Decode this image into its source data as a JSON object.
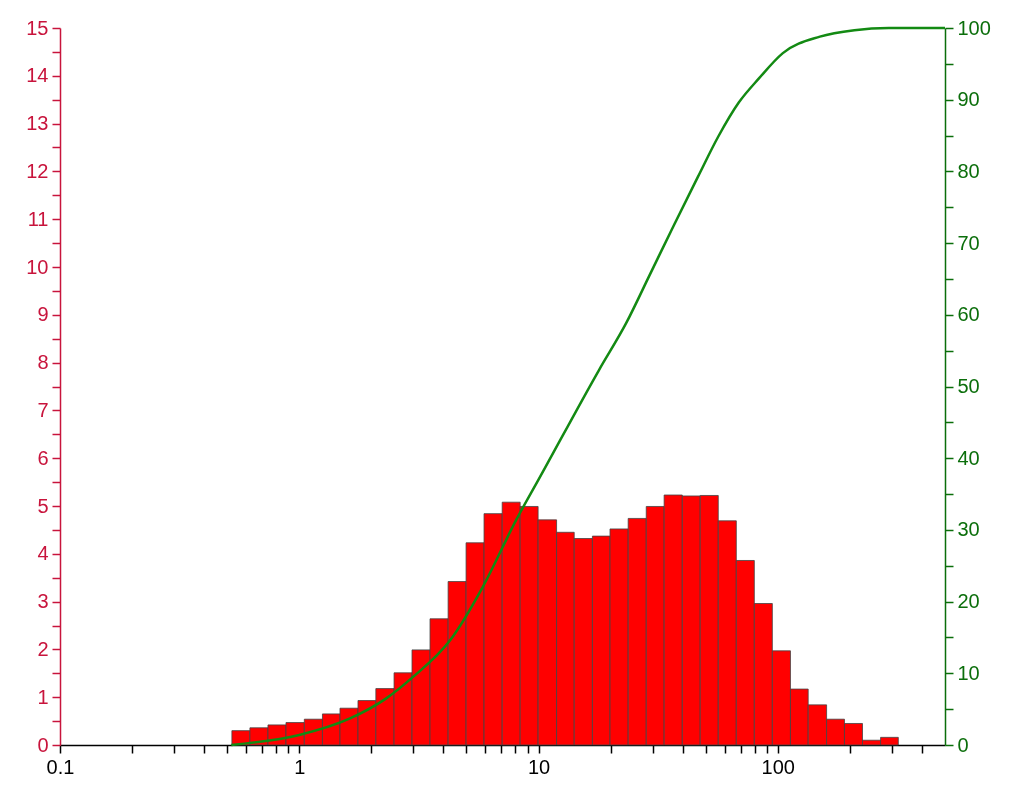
{
  "chart_data": {
    "type": "histogram",
    "bins": [
      0.523,
      0.622,
      0.74,
      0.88,
      1.05,
      1.25,
      1.48,
      1.76,
      2.09,
      2.49,
      2.96,
      3.52,
      4.19,
      4.98,
      5.92,
      7.05,
      8.38,
      9.96,
      11.9,
      14.1,
      16.8,
      19.9,
      23.7,
      28.2,
      33.5,
      39.9,
      47.4,
      56.4,
      67.1,
      79.8,
      94.9,
      113,
      134,
      160,
      190,
      226,
      269,
      319
    ],
    "values": [
      0.3,
      0.36,
      0.42,
      0.47,
      0.54,
      0.65,
      0.77,
      0.93,
      1.18,
      1.51,
      1.99,
      2.64,
      3.42,
      4.23,
      4.84,
      5.08,
      4.99,
      4.71,
      4.45,
      4.32,
      4.37,
      4.52,
      4.74,
      4.99,
      5.23,
      5.21,
      5.22,
      4.69,
      3.86,
      2.96,
      1.97,
      1.17,
      0.84,
      0.54,
      0.45,
      0.1,
      0.16
    ],
    "color": "#ff0000",
    "series": [
      {
        "type": "line",
        "axis": "y2",
        "color": "#138a13",
        "x": [
          0.52,
          1,
          1.63,
          2.31,
          2.99,
          4.27,
          5.86,
          8.07,
          10,
          17.9,
          23.3,
          29.2,
          36.8,
          46.3,
          56.5,
          68.7,
          83.6,
          105,
          150,
          209,
          291,
          500
        ],
        "values": [
          0,
          1.4,
          3.7,
          6.5,
          9.5,
          14.6,
          22.1,
          31.4,
          37,
          52.3,
          58.9,
          65.6,
          72.5,
          79.2,
          84.9,
          89.6,
          93,
          96.5,
          98.8,
          99.7,
          100,
          100
        ]
      }
    ],
    "log": "x",
    "xlim": [
      0.1,
      500
    ],
    "xticks": [
      0.1,
      {
        "value": 0.2,
        "label": null
      },
      {
        "value": 0.3,
        "label": null
      },
      {
        "value": 0.4,
        "label": null
      },
      {
        "value": 0.5,
        "label": null
      },
      {
        "value": 0.6,
        "label": null
      },
      {
        "value": 0.7,
        "label": null
      },
      {
        "value": 0.8,
        "label": null
      },
      {
        "value": 0.9,
        "label": null
      },
      1,
      {
        "value": 2,
        "label": null
      },
      {
        "value": 3,
        "label": null
      },
      {
        "value": 4,
        "label": null
      },
      {
        "value": 5,
        "label": null
      },
      {
        "value": 6,
        "label": null
      },
      {
        "value": 7,
        "label": null
      },
      {
        "value": 8,
        "label": null
      },
      {
        "value": 9,
        "label": null
      },
      10,
      {
        "value": 20,
        "label": null
      },
      {
        "value": 30,
        "label": null
      },
      {
        "value": 40,
        "label": null
      },
      {
        "value": 50,
        "label": null
      },
      {
        "value": 60,
        "label": null
      },
      {
        "value": 70,
        "label": null
      },
      {
        "value": 80,
        "label": null
      },
      {
        "value": 90,
        "label": null
      },
      100,
      {
        "value": 200,
        "label": null
      },
      {
        "value": 300,
        "label": null
      },
      {
        "value": 400,
        "label": null
      }
    ],
    "ylim": [
      0,
      15
    ],
    "yticks": [
      0,
      {
        "value": 0.5,
        "label": null
      },
      1,
      {
        "value": 1.5,
        "label": null
      },
      2,
      {
        "value": 2.5,
        "label": null
      },
      3,
      {
        "value": 3.5,
        "label": null
      },
      4,
      {
        "value": 4.5,
        "label": null
      },
      5,
      {
        "value": 5.5,
        "label": null
      },
      6,
      {
        "value": 6.5,
        "label": null
      },
      7,
      {
        "value": 7.5,
        "label": null
      },
      8,
      {
        "value": 8.5,
        "label": null
      },
      9,
      {
        "value": 9.5,
        "label": null
      },
      10,
      {
        "value": 10.5,
        "label": null
      },
      11,
      {
        "value": 11.5,
        "label": null
      },
      12,
      {
        "value": 12.5,
        "label": null
      },
      13,
      {
        "value": 13.5,
        "label": null
      },
      14,
      {
        "value": 14.5,
        "label": null
      },
      15
    ],
    "y2lim": [
      0,
      100
    ],
    "y2ticks": [
      0,
      {
        "value": 5,
        "label": null
      },
      10,
      {
        "value": 15,
        "label": null
      },
      20,
      {
        "value": 25,
        "label": null
      },
      30,
      {
        "value": 35,
        "label": null
      },
      40,
      {
        "value": 45,
        "label": null
      },
      50,
      {
        "value": 55,
        "label": null
      },
      60,
      {
        "value": 65,
        "label": null
      },
      70,
      {
        "value": 75,
        "label": null
      },
      80,
      {
        "value": 85,
        "label": null
      },
      90,
      {
        "value": 95,
        "label": null
      },
      100
    ],
    "grid": false
  }
}
